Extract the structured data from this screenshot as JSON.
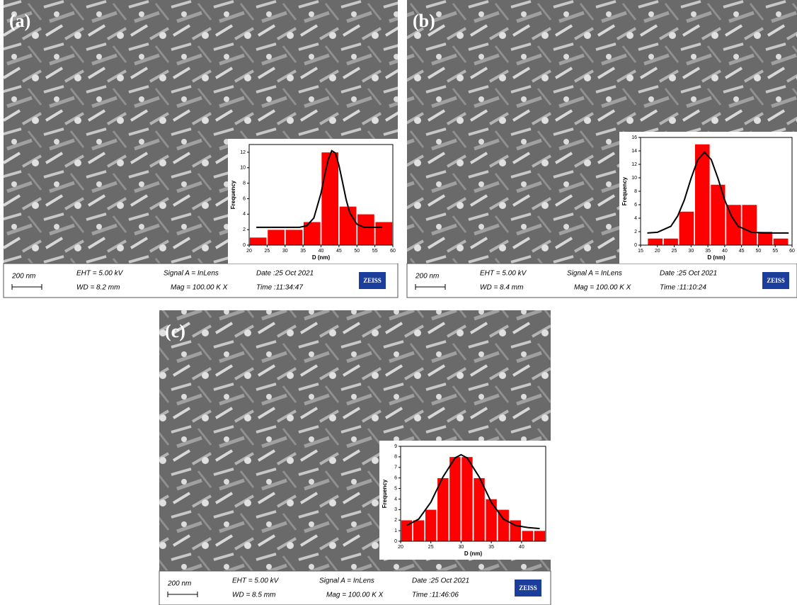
{
  "panels": [
    {
      "label": "(a)",
      "scale_bar": "200 nm",
      "eht": "EHT = 5.00 kV",
      "wd": "WD = 8.2 mm",
      "signal": "Signal A = InLens",
      "mag": "Mag = 100.00 K X",
      "date": "Date :25 Oct 2021",
      "time": "Time :11:34:47",
      "logo": "ZEISS"
    },
    {
      "label": "(b)",
      "scale_bar": "200 nm",
      "eht": "EHT = 5.00 kV",
      "wd": "WD = 8.4 mm",
      "signal": "Signal A = InLens",
      "mag": "Mag = 100.00 K X",
      "date": "Date :25 Oct 2021",
      "time": "Time :11:10:24",
      "logo": "ZEISS"
    },
    {
      "label": "(c)",
      "scale_bar": "200 nm",
      "eht": "EHT = 5.00 kV",
      "wd": "WD = 8.5 mm",
      "signal": "Signal A = InLens",
      "mag": "Mag = 100.00 K X",
      "date": "Date :25 Oct 2021",
      "time": "Time :11:46:06",
      "logo": "ZEISS"
    }
  ],
  "chart_data": [
    {
      "type": "histogram",
      "x_label": "D (nm)",
      "y_label": "Frequency",
      "color": "#ff0000",
      "bins": [
        20,
        25,
        30,
        35,
        40,
        45,
        50,
        55,
        60
      ],
      "counts": [
        1,
        2,
        2,
        3,
        12,
        5,
        4,
        3
      ],
      "fit": {
        "color": "#000000",
        "x": [
          22,
          26,
          30,
          34,
          36,
          38,
          40,
          41,
          42,
          43,
          44,
          45,
          46,
          47,
          48,
          50,
          52,
          54,
          57
        ],
        "values": [
          2.3,
          2.3,
          2.3,
          2.3,
          2.5,
          3.5,
          6.7,
          9.0,
          11.0,
          12.2,
          11.9,
          10.3,
          8.1,
          5.9,
          4.2,
          2.7,
          2.3,
          2.3,
          2.3
        ]
      },
      "xlim": [
        20,
        60
      ],
      "xticks": [
        20,
        25,
        30,
        35,
        40,
        45,
        50,
        55,
        60
      ],
      "ylim": [
        0,
        13
      ],
      "yticks": [
        0,
        2,
        4,
        6,
        8,
        10,
        12
      ]
    },
    {
      "type": "histogram",
      "x_label": "D (nm)",
      "y_label": "Frequency",
      "color": "#ff0000",
      "bins": [
        17,
        21.7,
        26.3,
        31,
        35.7,
        40.3,
        45,
        49.7,
        54.3,
        59
      ],
      "counts": [
        1,
        1,
        5,
        15,
        9,
        6,
        6,
        2,
        1
      ],
      "fit": {
        "color": "#000000",
        "x": [
          17,
          20,
          24,
          26,
          28,
          30,
          32,
          34,
          36,
          38,
          40,
          42,
          44,
          48,
          52,
          56,
          59
        ],
        "values": [
          1.8,
          1.9,
          2.8,
          4.3,
          6.7,
          9.9,
          12.7,
          13.8,
          12.7,
          9.9,
          6.7,
          4.3,
          2.8,
          1.9,
          1.8,
          1.8,
          1.8
        ]
      },
      "xlim": [
        15,
        60
      ],
      "xticks": [
        15,
        20,
        25,
        30,
        35,
        40,
        45,
        50,
        55,
        60
      ],
      "ylim": [
        0,
        16
      ],
      "yticks": [
        0,
        2,
        4,
        6,
        8,
        10,
        12,
        14,
        16
      ]
    },
    {
      "type": "histogram",
      "x_label": "D (nm)",
      "y_label": "Frequency",
      "color": "#ff0000",
      "bins": [
        20,
        22,
        24,
        26,
        28,
        30,
        32,
        34,
        36,
        38,
        40,
        42,
        44
      ],
      "counts": [
        2,
        2,
        3,
        6,
        8,
        8,
        6,
        4,
        3,
        2,
        1,
        1
      ],
      "fit": {
        "color": "#000000",
        "x": [
          21,
          23,
          25,
          27,
          29,
          30,
          31,
          33,
          35,
          37,
          39,
          41,
          43
        ],
        "values": [
          1.5,
          2.1,
          3.7,
          6.1,
          7.9,
          8.2,
          7.9,
          6.1,
          3.7,
          2.1,
          1.5,
          1.3,
          1.2
        ]
      },
      "xlim": [
        20,
        44
      ],
      "xticks": [
        20,
        25,
        30,
        35,
        40
      ],
      "ylim": [
        0,
        9
      ],
      "yticks": [
        0,
        1,
        2,
        3,
        4,
        5,
        6,
        7,
        8,
        9
      ]
    }
  ]
}
